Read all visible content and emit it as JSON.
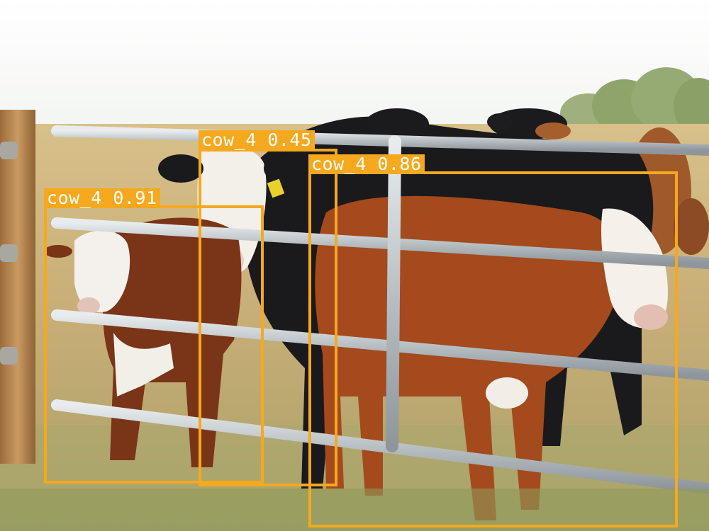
{
  "image": {
    "description_colors": {
      "sky": "#fbfcfb",
      "field": "#c9b07a",
      "grass": "#a9a56c",
      "gate": "#c9ced1",
      "post": "#b98a55",
      "accent": "#f6a81f"
    }
  },
  "detections": [
    {
      "class_name": "cow_4",
      "score": "0.91"
    },
    {
      "class_name": "cow_4",
      "score": "0.45"
    },
    {
      "class_name": "cow_4",
      "score": "0.86"
    }
  ]
}
